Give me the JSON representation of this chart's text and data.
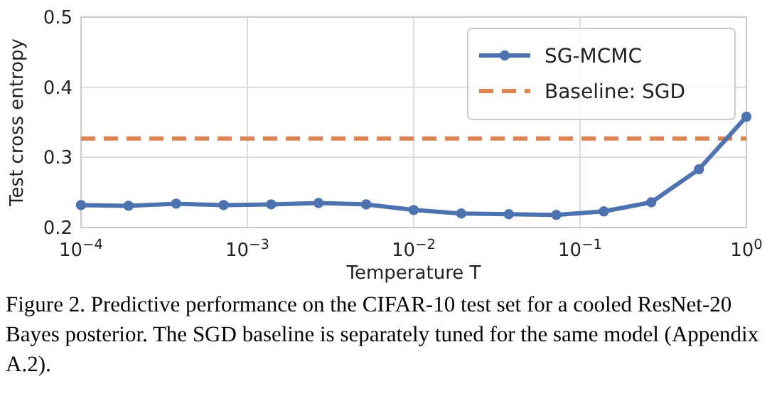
{
  "chart_data": {
    "type": "line",
    "xlabel": "Temperature T",
    "ylabel": "Test cross entropy",
    "x": [
      0.0001,
      0.000193,
      0.000373,
      0.00072,
      0.00139,
      0.00268,
      0.00518,
      0.01,
      0.0193,
      0.0373,
      0.072,
      0.139,
      0.268,
      0.518,
      1
    ],
    "series": [
      {
        "name": "SG-MCMC",
        "color": "#4c72b0",
        "values": [
          0.232,
          0.231,
          0.234,
          0.232,
          0.233,
          0.235,
          0.233,
          0.225,
          0.22,
          0.219,
          0.218,
          0.223,
          0.236,
          0.283,
          0.358
        ]
      }
    ],
    "ref_lines": [
      {
        "axis": "y",
        "value": 0.327,
        "label": "Baseline: SGD",
        "color": "#dd8452",
        "line_style": "dashed"
      }
    ],
    "log": "x",
    "xlim": [
      0.0001,
      1
    ],
    "ylim": [
      0.2,
      0.5
    ],
    "xticks": [
      {
        "value": 0.0001,
        "label": "10$^{−4}$"
      },
      {
        "value": 0.001,
        "label": "10$^{−3}$"
      },
      {
        "value": 0.01,
        "label": "10$^{−2}$"
      },
      {
        "value": 0.1,
        "label": "10$^{−1}$"
      },
      {
        "value": 1,
        "label": "10$^{0}$"
      }
    ],
    "yticks": [
      0.2,
      0.3,
      0.4,
      0.5
    ],
    "grid": true,
    "legend": "top right",
    "marker": "circle",
    "line_style": "solid",
    "annotations": [
      "Figure 2. Predictive performance on the CIFAR-10 test set for a cooled ResNet-20 Bayes posterior. The SGD baseline is separately tuned for the same model (Appendix A.2)."
    ]
  }
}
